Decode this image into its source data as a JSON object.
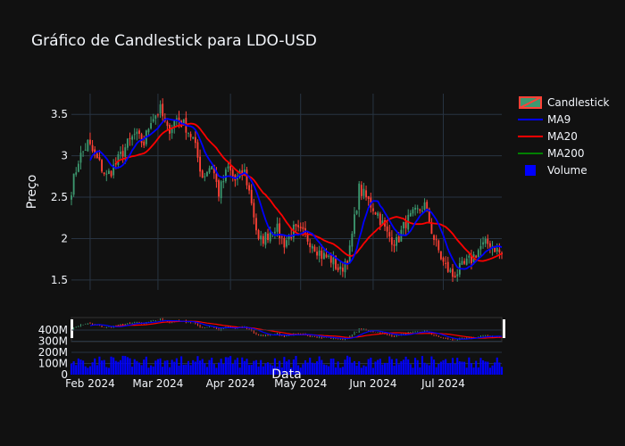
{
  "chart_data": {
    "type": "candlestick",
    "title": "Gráfico de Candlestick para LDO-USD",
    "xlabel": "Data",
    "ylabel": "Preço",
    "price_axis": {
      "ylim": [
        1.38,
        3.75
      ],
      "ticks": [
        1.5,
        2,
        2.5,
        3,
        3.5
      ],
      "tick_labels": [
        "1.5",
        "2",
        "2.5",
        "3",
        "3.5"
      ]
    },
    "volume_axis": {
      "ylim": [
        0,
        480000000
      ],
      "ticks": [
        0,
        100000000,
        200000000,
        300000000,
        400000000
      ],
      "tick_labels": [
        "0",
        "100M",
        "200M",
        "300M",
        "400M"
      ]
    },
    "x_range": [
      "2024-01-24",
      "2024-07-26"
    ],
    "x_ticks": [
      {
        "date": "2024-02-01",
        "label": "Feb 2024"
      },
      {
        "date": "2024-03-01",
        "label": "Mar 2024"
      },
      {
        "date": "2024-04-01",
        "label": "Apr 2024"
      },
      {
        "date": "2024-05-01",
        "label": "May 2024"
      },
      {
        "date": "2024-06-01",
        "label": "Jun 2024"
      },
      {
        "date": "2024-07-01",
        "label": "Jul 2024"
      }
    ],
    "close_anchors": [
      [
        "2024-01-24",
        2.6
      ],
      [
        "2024-01-27",
        2.95
      ],
      [
        "2024-01-31",
        3.15
      ],
      [
        "2024-02-04",
        2.95
      ],
      [
        "2024-02-08",
        2.75
      ],
      [
        "2024-02-12",
        2.9
      ],
      [
        "2024-02-16",
        3.1
      ],
      [
        "2024-02-20",
        3.25
      ],
      [
        "2024-02-24",
        3.15
      ],
      [
        "2024-02-27",
        3.45
      ],
      [
        "2024-03-02",
        3.55
      ],
      [
        "2024-03-05",
        3.3
      ],
      [
        "2024-03-09",
        3.45
      ],
      [
        "2024-03-13",
        3.35
      ],
      [
        "2024-03-16",
        3.2
      ],
      [
        "2024-03-20",
        2.75
      ],
      [
        "2024-03-24",
        2.9
      ],
      [
        "2024-03-27",
        2.55
      ],
      [
        "2024-03-31",
        2.85
      ],
      [
        "2024-04-03",
        2.7
      ],
      [
        "2024-04-07",
        2.8
      ],
      [
        "2024-04-10",
        2.45
      ],
      [
        "2024-04-13",
        1.95
      ],
      [
        "2024-04-17",
        2.05
      ],
      [
        "2024-04-20",
        2.15
      ],
      [
        "2024-04-24",
        1.95
      ],
      [
        "2024-04-28",
        2.1
      ],
      [
        "2024-05-02",
        2.05
      ],
      [
        "2024-05-06",
        1.95
      ],
      [
        "2024-05-10",
        1.8
      ],
      [
        "2024-05-14",
        1.75
      ],
      [
        "2024-05-18",
        1.6
      ],
      [
        "2024-05-22",
        1.85
      ],
      [
        "2024-05-26",
        2.6
      ],
      [
        "2024-05-30",
        2.45
      ],
      [
        "2024-06-03",
        2.3
      ],
      [
        "2024-06-07",
        2.05
      ],
      [
        "2024-06-11",
        1.95
      ],
      [
        "2024-06-15",
        2.2
      ],
      [
        "2024-06-19",
        2.3
      ],
      [
        "2024-06-23",
        2.4
      ],
      [
        "2024-06-27",
        2.0
      ],
      [
        "2024-07-01",
        1.7
      ],
      [
        "2024-07-05",
        1.55
      ],
      [
        "2024-07-09",
        1.65
      ],
      [
        "2024-07-13",
        1.75
      ],
      [
        "2024-07-17",
        1.9
      ],
      [
        "2024-07-21",
        1.95
      ],
      [
        "2024-07-26",
        1.8
      ]
    ],
    "series": [
      {
        "name": "Candlestick",
        "kind": "ohlc",
        "increasing_color": "#3d9970",
        "decreasing_color": "#ff4136"
      },
      {
        "name": "MA9",
        "kind": "moving_average",
        "window": 9,
        "color": "#0000ff"
      },
      {
        "name": "MA20",
        "kind": "moving_average",
        "window": 20,
        "color": "#ff0000"
      },
      {
        "name": "MA200",
        "kind": "moving_average",
        "window": 200,
        "color": "#008000"
      },
      {
        "name": "Volume",
        "kind": "bar",
        "color": "#0000ff"
      }
    ],
    "legend": {
      "placement": "right-top"
    },
    "grid": true,
    "range_slider": true
  },
  "theme": {
    "background": "#111111",
    "plot_background": "#111111",
    "grid": "#283442",
    "text": "#f2f5fa"
  }
}
